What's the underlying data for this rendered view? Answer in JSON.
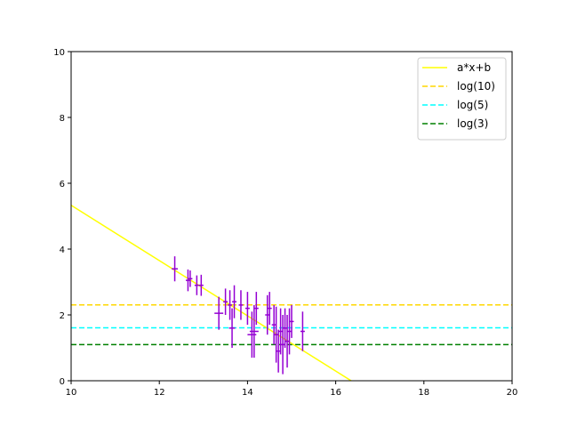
{
  "chart_data": {
    "type": "scatter",
    "xlim": [
      10,
      20
    ],
    "ylim": [
      0,
      10
    ],
    "xticks": [
      10,
      12,
      14,
      16,
      18,
      20
    ],
    "yticks": [
      0,
      2,
      4,
      6,
      8,
      10
    ],
    "grid": false,
    "legend_placement": "top-right",
    "fit_line": {
      "label": "a*x+b",
      "color": "#ffff00",
      "style": "solid",
      "points": [
        [
          10,
          5.33
        ],
        [
          16.35,
          0
        ]
      ]
    },
    "hlines": [
      {
        "label": "log(10)",
        "value": 2.3026,
        "color": "#ffd700",
        "style": "dashed"
      },
      {
        "label": "log(5)",
        "value": 1.6094,
        "color": "#00ffff",
        "style": "dashed"
      },
      {
        "label": "log(3)",
        "value": 1.0986,
        "color": "#008000",
        "style": "dashed"
      }
    ],
    "errorbar_color": "#9400d3",
    "points": [
      {
        "x": 12.35,
        "y": 3.4,
        "xerr": 0.07,
        "yerr": 0.38
      },
      {
        "x": 12.65,
        "y": 3.05,
        "xerr": 0.05,
        "yerr": 0.33
      },
      {
        "x": 12.7,
        "y": 3.1,
        "xerr": 0.05,
        "yerr": 0.25
      },
      {
        "x": 12.85,
        "y": 2.9,
        "xerr": 0.05,
        "yerr": 0.3
      },
      {
        "x": 12.95,
        "y": 2.9,
        "xerr": 0.05,
        "yerr": 0.32
      },
      {
        "x": 13.35,
        "y": 2.05,
        "xerr": 0.1,
        "yerr": 0.5
      },
      {
        "x": 13.5,
        "y": 2.4,
        "xerr": 0.05,
        "yerr": 0.4
      },
      {
        "x": 13.6,
        "y": 2.3,
        "xerr": 0.05,
        "yerr": 0.45
      },
      {
        "x": 13.65,
        "y": 1.6,
        "xerr": 0.07,
        "yerr": 0.6
      },
      {
        "x": 13.7,
        "y": 2.4,
        "xerr": 0.05,
        "yerr": 0.5
      },
      {
        "x": 13.85,
        "y": 2.3,
        "xerr": 0.05,
        "yerr": 0.45
      },
      {
        "x": 14.0,
        "y": 2.2,
        "xerr": 0.05,
        "yerr": 0.5
      },
      {
        "x": 14.1,
        "y": 1.4,
        "xerr": 0.1,
        "yerr": 0.7
      },
      {
        "x": 14.15,
        "y": 1.5,
        "xerr": 0.1,
        "yerr": 0.8
      },
      {
        "x": 14.2,
        "y": 2.2,
        "xerr": 0.05,
        "yerr": 0.5
      },
      {
        "x": 14.45,
        "y": 2.0,
        "xerr": 0.05,
        "yerr": 0.6
      },
      {
        "x": 14.5,
        "y": 2.2,
        "xerr": 0.05,
        "yerr": 0.5
      },
      {
        "x": 14.6,
        "y": 1.7,
        "xerr": 0.05,
        "yerr": 0.6
      },
      {
        "x": 14.65,
        "y": 1.4,
        "xerr": 0.05,
        "yerr": 0.85
      },
      {
        "x": 14.7,
        "y": 0.9,
        "xerr": 0.05,
        "yerr": 0.65
      },
      {
        "x": 14.75,
        "y": 1.5,
        "xerr": 0.05,
        "yerr": 0.7
      },
      {
        "x": 14.8,
        "y": 1.1,
        "xerr": 0.05,
        "yerr": 0.9
      },
      {
        "x": 14.85,
        "y": 1.6,
        "xerr": 0.05,
        "yerr": 0.6
      },
      {
        "x": 14.9,
        "y": 1.2,
        "xerr": 0.05,
        "yerr": 0.8
      },
      {
        "x": 14.95,
        "y": 1.5,
        "xerr": 0.05,
        "yerr": 0.7
      },
      {
        "x": 15.0,
        "y": 1.8,
        "xerr": 0.05,
        "yerr": 0.5
      },
      {
        "x": 15.25,
        "y": 1.5,
        "xerr": 0.05,
        "yerr": 0.6
      }
    ]
  }
}
